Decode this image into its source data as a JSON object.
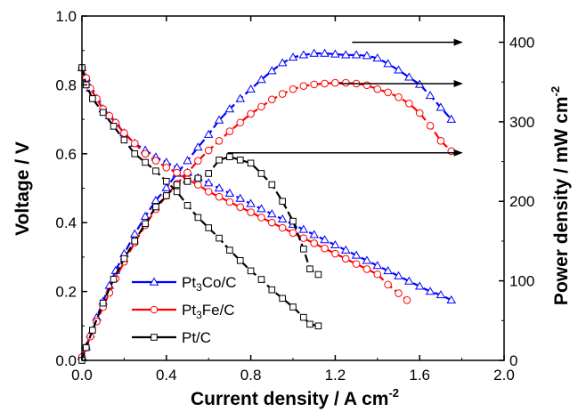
{
  "chart_data": {
    "type": "line",
    "xlabel": "Current density / A cm",
    "xlabel_sup": "-2",
    "ylabel_left": "Voltage / V",
    "ylabel_right": "Power density / mW cm",
    "ylabel_right_sup": "-2",
    "xlim": [
      0.0,
      2.0
    ],
    "ylim_left": [
      0.0,
      1.0
    ],
    "ylim_right": [
      0,
      433
    ],
    "x_ticks": [
      "0.0",
      "0.4",
      "0.8",
      "1.2",
      "1.6",
      "2.0"
    ],
    "x_tick_values": [
      0.0,
      0.4,
      0.8,
      1.2,
      1.6,
      2.0
    ],
    "y_left_ticks": [
      "0.0",
      "0.2",
      "0.4",
      "0.6",
      "0.8",
      "1.0"
    ],
    "y_left_tick_values": [
      0.0,
      0.2,
      0.4,
      0.6,
      0.8,
      1.0
    ],
    "y_right_ticks": [
      "0",
      "100",
      "200",
      "300",
      "400"
    ],
    "y_right_tick_values": [
      0,
      100,
      200,
      300,
      400
    ],
    "legend_position": "bottom-left",
    "series": [
      {
        "name": "Pt",
        "name_sub": "3",
        "name_rest": "Co/C",
        "color": "#0000ff",
        "marker": "triangle",
        "voltage_x": [
          0.0,
          0.02,
          0.04,
          0.07,
          0.1,
          0.13,
          0.16,
          0.2,
          0.25,
          0.3,
          0.35,
          0.4,
          0.45,
          0.5,
          0.55,
          0.6,
          0.65,
          0.7,
          0.75,
          0.8,
          0.85,
          0.9,
          0.95,
          1.0,
          1.05,
          1.1,
          1.15,
          1.2,
          1.25,
          1.3,
          1.35,
          1.4,
          1.45,
          1.5,
          1.55,
          1.6,
          1.65,
          1.7,
          1.75
        ],
        "voltage_y": [
          0.85,
          0.82,
          0.79,
          0.76,
          0.73,
          0.71,
          0.69,
          0.66,
          0.63,
          0.61,
          0.59,
          0.575,
          0.56,
          0.545,
          0.53,
          0.515,
          0.5,
          0.485,
          0.47,
          0.455,
          0.44,
          0.425,
          0.41,
          0.395,
          0.38,
          0.365,
          0.35,
          0.335,
          0.32,
          0.305,
          0.29,
          0.275,
          0.26,
          0.245,
          0.23,
          0.215,
          0.2,
          0.19,
          0.175
        ],
        "power_x": [
          0.0,
          0.02,
          0.04,
          0.07,
          0.1,
          0.13,
          0.16,
          0.2,
          0.25,
          0.3,
          0.35,
          0.4,
          0.45,
          0.5,
          0.55,
          0.6,
          0.65,
          0.7,
          0.75,
          0.8,
          0.85,
          0.9,
          0.95,
          1.0,
          1.05,
          1.1,
          1.15,
          1.2,
          1.25,
          1.3,
          1.35,
          1.4,
          1.45,
          1.5,
          1.55,
          1.6,
          1.65,
          1.7,
          1.75
        ],
        "power_y": [
          5,
          17,
          33,
          54,
          74,
          94,
          113,
          134,
          159,
          181,
          201,
          217,
          235,
          251,
          268,
          284,
          302,
          316,
          329,
          341,
          353,
          364,
          374,
          381,
          384,
          386,
          386,
          385,
          384,
          384,
          383,
          380,
          373,
          365,
          356,
          347,
          333,
          318,
          303
        ]
      },
      {
        "name": "Pt",
        "name_sub": "3",
        "name_rest": "Fe/C",
        "color": "#ff0000",
        "marker": "circle",
        "voltage_x": [
          0.0,
          0.02,
          0.04,
          0.07,
          0.1,
          0.13,
          0.16,
          0.2,
          0.25,
          0.3,
          0.35,
          0.4,
          0.45,
          0.5,
          0.55,
          0.6,
          0.65,
          0.7,
          0.75,
          0.8,
          0.85,
          0.9,
          0.95,
          1.0,
          1.05,
          1.1,
          1.15,
          1.2,
          1.25,
          1.3,
          1.35,
          1.4,
          1.45,
          1.5,
          1.54
        ],
        "voltage_y": [
          0.85,
          0.82,
          0.79,
          0.76,
          0.73,
          0.71,
          0.69,
          0.66,
          0.63,
          0.6,
          0.58,
          0.56,
          0.545,
          0.525,
          0.51,
          0.49,
          0.475,
          0.46,
          0.445,
          0.43,
          0.415,
          0.4,
          0.385,
          0.37,
          0.355,
          0.34,
          0.325,
          0.31,
          0.295,
          0.28,
          0.265,
          0.25,
          0.22,
          0.195,
          0.175
        ],
        "power_x": [
          0.0,
          0.02,
          0.04,
          0.07,
          0.1,
          0.13,
          0.16,
          0.2,
          0.25,
          0.3,
          0.35,
          0.4,
          0.45,
          0.5,
          0.55,
          0.6,
          0.65,
          0.7,
          0.75,
          0.8,
          0.85,
          0.9,
          0.95,
          1.0,
          1.05,
          1.1,
          1.15,
          1.2,
          1.25,
          1.3,
          1.35,
          1.4,
          1.45,
          1.5,
          1.55,
          1.6,
          1.65,
          1.7,
          1.75
        ],
        "power_y": [
          4,
          16,
          30,
          49,
          67,
          85,
          103,
          124,
          148,
          170,
          190,
          207,
          222,
          236,
          251,
          264,
          276,
          288,
          299,
          310,
          319,
          328,
          335,
          341,
          345,
          347,
          348,
          349,
          349,
          348,
          346,
          341,
          337,
          331,
          323,
          311,
          295,
          276,
          263
        ]
      },
      {
        "name": "Pt/C",
        "name_sub": "",
        "name_rest": "",
        "color": "#000000",
        "marker": "square",
        "voltage_x": [
          0.0,
          0.02,
          0.05,
          0.1,
          0.15,
          0.2,
          0.25,
          0.3,
          0.35,
          0.4,
          0.45,
          0.5,
          0.55,
          0.6,
          0.65,
          0.7,
          0.75,
          0.8,
          0.85,
          0.9,
          0.95,
          1.0,
          1.05,
          1.08,
          1.12
        ],
        "voltage_y": [
          0.85,
          0.8,
          0.76,
          0.72,
          0.68,
          0.64,
          0.6,
          0.575,
          0.55,
          0.52,
          0.49,
          0.45,
          0.415,
          0.385,
          0.355,
          0.32,
          0.29,
          0.26,
          0.235,
          0.205,
          0.18,
          0.155,
          0.125,
          0.105,
          0.1
        ],
        "power_x": [
          0.0,
          0.02,
          0.05,
          0.1,
          0.15,
          0.2,
          0.25,
          0.3,
          0.35,
          0.4,
          0.45,
          0.5,
          0.55,
          0.6,
          0.65,
          0.7,
          0.75,
          0.8,
          0.85,
          0.9,
          0.95,
          1.0,
          1.05,
          1.08,
          1.12
        ],
        "power_y": [
          0,
          16,
          38,
          72,
          102,
          128,
          150,
          172,
          193,
          207,
          221,
          225,
          229,
          235,
          252,
          256,
          252,
          248,
          235,
          221,
          200,
          175,
          140,
          115,
          108
        ]
      }
    ],
    "annotation_arrows": [
      {
        "x_start": 1.28,
        "y_start": 400,
        "x_end": 1.8,
        "y_end": 400
      },
      {
        "x_start": 1.22,
        "y_start": 348,
        "x_end": 1.8,
        "y_end": 348
      },
      {
        "x_start": 0.69,
        "y_start": 261,
        "x_end": 1.8,
        "y_end": 261
      }
    ]
  }
}
